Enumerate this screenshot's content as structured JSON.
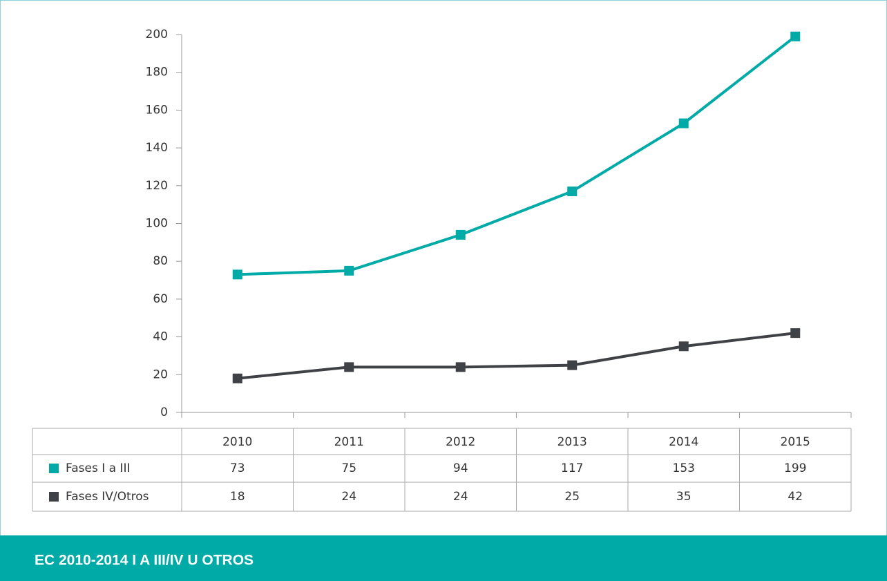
{
  "chart_data": {
    "type": "line",
    "title": "EC 2010-2014 I A III/IV U OTROS",
    "categories": [
      "2010",
      "2011",
      "2012",
      "2013",
      "2014",
      "2015"
    ],
    "series": [
      {
        "name": "Fases I a III",
        "color": "#00aaa6",
        "values": [
          73,
          75,
          94,
          117,
          153,
          199
        ]
      },
      {
        "name": "Fases IV/Otros",
        "color": "#3e4145",
        "values": [
          18,
          24,
          24,
          25,
          35,
          42
        ]
      }
    ],
    "ylim": [
      0,
      200
    ],
    "yticks": [
      0,
      20,
      40,
      60,
      80,
      100,
      120,
      140,
      160,
      180,
      200
    ]
  }
}
